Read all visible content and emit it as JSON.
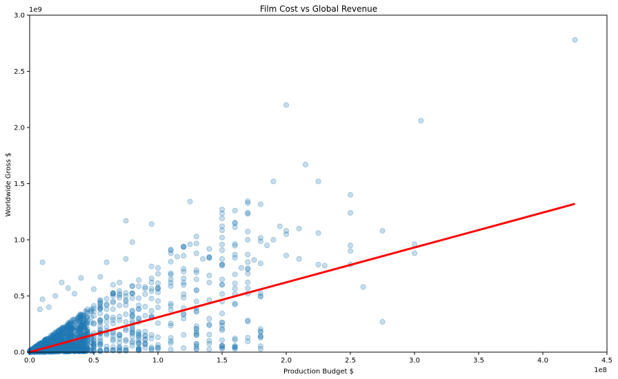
{
  "chart_data": {
    "type": "scatter",
    "title": "Film Cost vs Global Revenue",
    "xlabel": "Production Budget $",
    "ylabel": "Worldwide Gross $",
    "x_offset_label": "1e8",
    "y_offset_label": "1e9",
    "xlim": [
      0,
      4.5
    ],
    "ylim": [
      0,
      3.0
    ],
    "xticks": [
      "0.0",
      "0.5",
      "1.0",
      "1.5",
      "2.0",
      "2.5",
      "3.0",
      "3.5",
      "4.0",
      "4.5"
    ],
    "yticks": [
      "0.0",
      "0.5",
      "1.0",
      "1.5",
      "2.0",
      "2.5",
      "3.0"
    ],
    "grid": false,
    "series": [
      {
        "kind": "scatter",
        "color": "#1f77b4",
        "opacity": 0.25,
        "x": [
          4.25,
          2.0,
          3.05,
          2.15,
          2.25,
          2.5,
          1.9,
          1.25,
          1.5,
          1.6,
          2.5,
          0.75,
          0.95,
          1.5,
          3.0,
          3.0,
          2.75,
          2.75,
          2.6,
          2.5,
          2.5,
          2.5,
          2.3,
          2.25,
          2.25,
          2.1,
          2.1,
          2.0,
          2.0,
          2.0,
          1.95,
          1.9,
          1.85,
          1.8,
          1.75,
          1.7,
          1.65,
          1.6,
          1.5,
          1.5,
          1.5,
          1.4,
          1.35,
          1.3,
          1.25,
          1.2,
          1.15,
          1.1,
          1.0,
          0.9,
          0.85,
          0.8,
          0.75,
          0.7,
          0.65,
          0.6,
          0.55,
          0.5,
          0.45,
          0.4,
          0.35,
          0.3,
          0.25,
          0.2,
          0.15,
          0.1,
          0.1,
          0.08
        ],
        "y": [
          2.78,
          2.2,
          2.06,
          1.67,
          1.52,
          1.4,
          1.52,
          1.34,
          1.27,
          1.26,
          1.24,
          1.17,
          1.14,
          1.02,
          0.96,
          0.88,
          1.08,
          0.27,
          0.58,
          0.95,
          0.9,
          0.78,
          0.77,
          0.78,
          1.06,
          1.1,
          0.83,
          1.08,
          1.05,
          0.86,
          1.12,
          1.0,
          0.95,
          0.79,
          0.82,
          0.7,
          0.75,
          0.84,
          0.78,
          0.6,
          0.45,
          0.62,
          0.83,
          0.73,
          0.96,
          0.62,
          0.85,
          0.88,
          0.75,
          0.58,
          0.48,
          0.98,
          0.83,
          0.62,
          0.6,
          0.8,
          0.67,
          0.56,
          0.38,
          0.66,
          0.52,
          0.57,
          0.62,
          0.5,
          0.4,
          0.8,
          0.47,
          0.38
        ]
      },
      {
        "kind": "line",
        "color": "#ff0000",
        "x": [
          0.0,
          4.25
        ],
        "y": [
          0.0,
          1.32
        ]
      }
    ]
  }
}
